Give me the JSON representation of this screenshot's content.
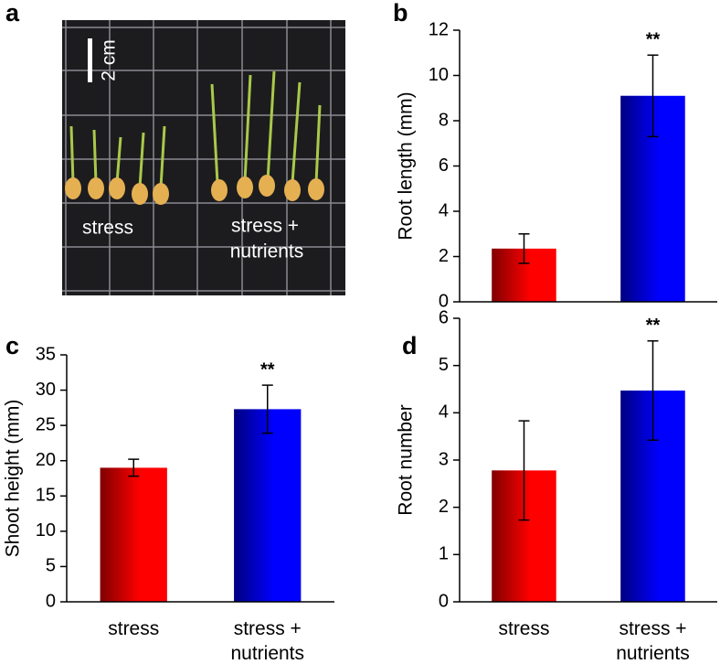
{
  "photo": {
    "panel_label": "a",
    "scale_label": "2 cm",
    "group_labels": [
      "stress",
      "stress +",
      "nutrients"
    ]
  },
  "chart_data": [
    {
      "type": "bar",
      "panel_label": "b",
      "ylabel": "Root length (mm)",
      "categories": [
        null,
        null
      ],
      "values": [
        2.35,
        9.1
      ],
      "errors": [
        0.65,
        1.8
      ],
      "colors": [
        "#ff0000",
        "#0000ff"
      ],
      "ylim": [
        0,
        12
      ],
      "yticks": [
        0,
        2,
        4,
        6,
        8,
        10,
        12
      ],
      "annotation": "**"
    },
    {
      "type": "bar",
      "panel_label": "c",
      "ylabel": "Shoot height (mm)",
      "categories": [
        "stress",
        "stress + nutrients"
      ],
      "values": [
        19.0,
        27.3
      ],
      "errors": [
        1.2,
        3.4
      ],
      "colors": [
        "#ff0000",
        "#0000ff"
      ],
      "ylim": [
        0,
        35
      ],
      "yticks": [
        0,
        5,
        10,
        15,
        20,
        25,
        30,
        35
      ],
      "annotation": "**"
    },
    {
      "type": "bar",
      "panel_label": "d",
      "ylabel": "Root number",
      "categories": [
        "stress",
        "stress + nutrients"
      ],
      "values": [
        2.78,
        4.47
      ],
      "errors": [
        1.05,
        1.05
      ],
      "colors": [
        "#ff0000",
        "#0000ff"
      ],
      "ylim": [
        0,
        6
      ],
      "yticks": [
        0,
        1,
        2,
        3,
        4,
        5,
        6
      ],
      "annotation": "**"
    }
  ]
}
